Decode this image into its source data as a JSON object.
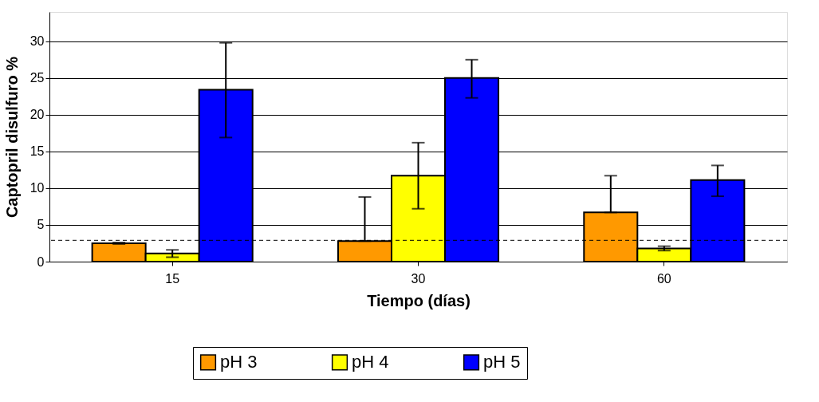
{
  "chart_data": {
    "type": "bar",
    "xlabel": "Tiempo (días)",
    "ylabel": "Captopril disulfuro %",
    "categories": [
      "15",
      "30",
      "60"
    ],
    "series": [
      {
        "name": "pH 3",
        "color": "#ff9900",
        "values": [
          2.5,
          2.8,
          6.7
        ],
        "errors": [
          [
            2.4,
            2.6
          ],
          [
            2.8,
            8.8
          ],
          [
            6.7,
            11.7
          ]
        ]
      },
      {
        "name": "pH 4",
        "color": "#ffff00",
        "values": [
          1.1,
          11.7,
          1.8
        ],
        "errors": [
          [
            0.6,
            1.6
          ],
          [
            7.2,
            16.2
          ],
          [
            1.5,
            2.1
          ]
        ]
      },
      {
        "name": "pH 5",
        "color": "#0000ff",
        "values": [
          23.4,
          25.0,
          11.1
        ],
        "errors": [
          [
            16.9,
            29.8
          ],
          [
            22.3,
            27.5
          ],
          [
            8.9,
            13.1
          ]
        ]
      }
    ],
    "ylim": [
      0,
      34
    ],
    "yticks": [
      0,
      5,
      10,
      15,
      20,
      25,
      30
    ],
    "grid": "y",
    "legend": "bottom",
    "ref_lines": [
      {
        "axis": "y",
        "value": 2.9,
        "line_style": "dashed",
        "color": "#000000"
      }
    ]
  }
}
